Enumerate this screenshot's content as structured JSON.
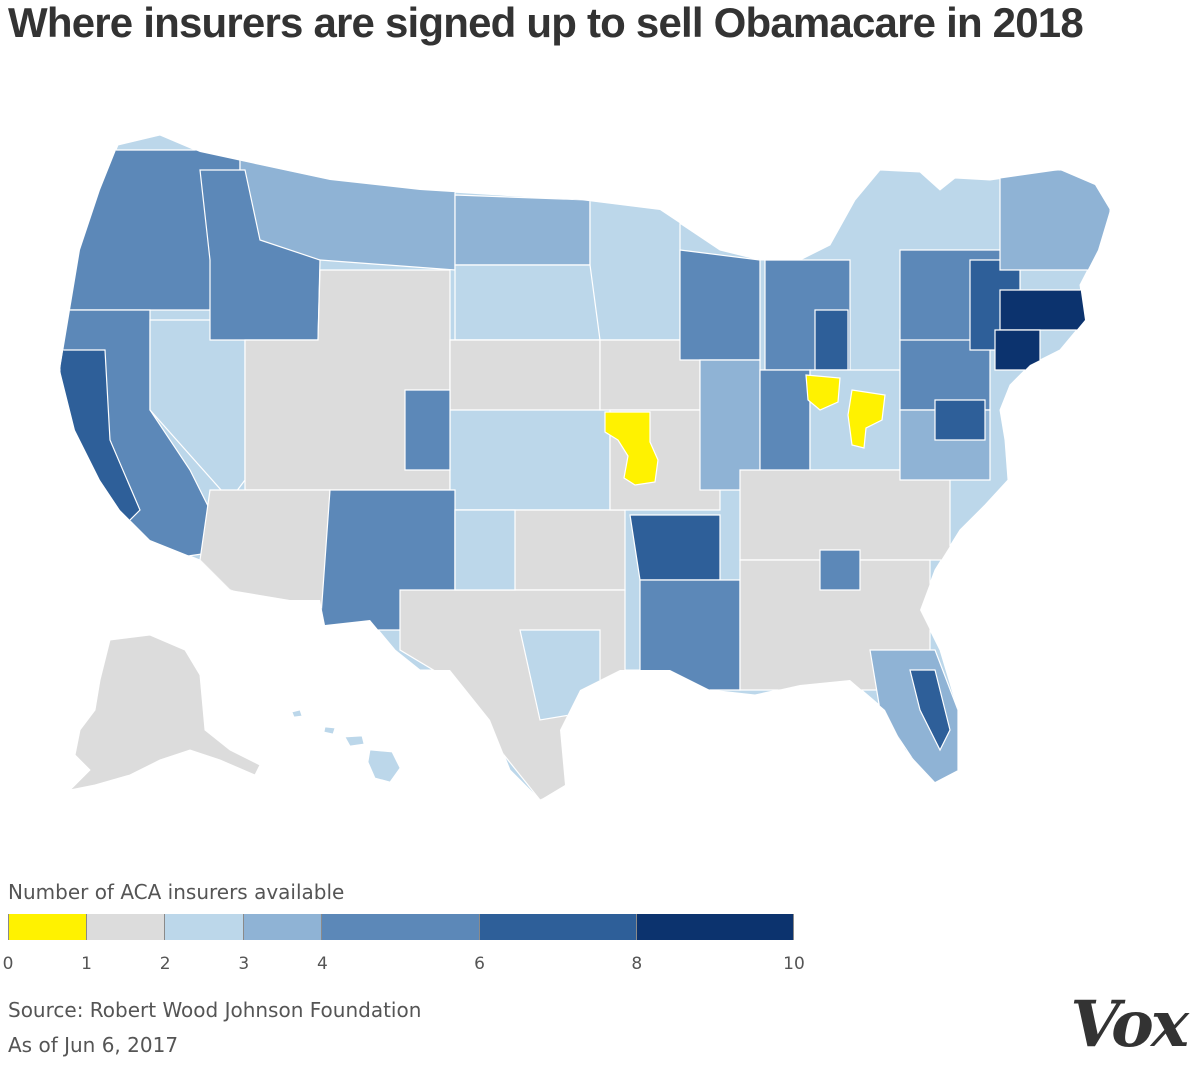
{
  "title": "Where insurers are signed up to sell Obamacare in 2018",
  "legend": {
    "title": "Number of ACA insurers available",
    "ticks": [
      "0",
      "1",
      "2",
      "3",
      "4",
      "6",
      "8",
      "10"
    ],
    "bins": [
      {
        "from": 0,
        "to": 1,
        "color": "#fff200"
      },
      {
        "from": 1,
        "to": 2,
        "color": "#dcdcdc"
      },
      {
        "from": 2,
        "to": 3,
        "color": "#bcd7ea"
      },
      {
        "from": 3,
        "to": 4,
        "color": "#8fb3d5"
      },
      {
        "from": 4,
        "to": 6,
        "color": "#5c88b8"
      },
      {
        "from": 6,
        "to": 8,
        "color": "#2e5f99"
      },
      {
        "from": 8,
        "to": 10,
        "color": "#0c336e"
      }
    ]
  },
  "source": "Source: Robert Wood Johnson Foundation",
  "as_of": "As of Jun 6, 2017",
  "logo_text": "Vox"
}
